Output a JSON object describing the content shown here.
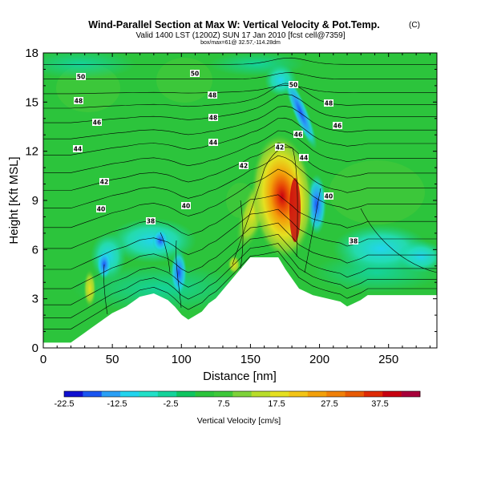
{
  "chart_data": {
    "type": "heatmap",
    "title": "Wind-Parallel Section at Max W: Vertical Velocity & Pot.Temp.",
    "title_mark": "(C)",
    "subtitle": "Valid 1400 LST (1200Z) SUN 17 Jan 2010 [fcst cell@7359]",
    "subtitle2": "box/max=61@ 32.57,-114.28dm",
    "xlabel": "Distance [nm]",
    "ylabel": "Height [Kft MSL]",
    "xlim": [
      0,
      285
    ],
    "ylim": [
      0,
      18
    ],
    "x_ticks": [
      "0",
      "50",
      "100",
      "150",
      "200",
      "250"
    ],
    "y_ticks": [
      "0",
      "3",
      "6",
      "9",
      "12",
      "15",
      "18"
    ],
    "colorbar": {
      "label": "Vertical Velocity [cm/s]",
      "tick_labels": [
        "-22.5",
        "-12.5",
        "-2.5",
        "7.5",
        "17.5",
        "27.5",
        "37.5"
      ],
      "colors": [
        "#1010d0",
        "#1a55f0",
        "#2a9ff5",
        "#22d4ee",
        "#22e0c8",
        "#14d39a",
        "#0fc560",
        "#2cc43c",
        "#3ec83a",
        "#7ed23a",
        "#b8dd2a",
        "#e5e020",
        "#f3c416",
        "#f3a00a",
        "#f08008",
        "#e85a05",
        "#df2a05",
        "#c80010",
        "#a8003a"
      ]
    },
    "terrain_heights_kft": [
      [
        0,
        0.3
      ],
      [
        20,
        0.3
      ],
      [
        25,
        0.6
      ],
      [
        30,
        0.9
      ],
      [
        35,
        1.2
      ],
      [
        40,
        1.5
      ],
      [
        45,
        1.8
      ],
      [
        50,
        2.1
      ],
      [
        60,
        2.5
      ],
      [
        65,
        2.8
      ],
      [
        70,
        3.1
      ],
      [
        80,
        3.3
      ],
      [
        90,
        2.9
      ],
      [
        95,
        2.5
      ],
      [
        100,
        2.0
      ],
      [
        105,
        1.7
      ],
      [
        115,
        2.2
      ],
      [
        120,
        2.7
      ],
      [
        125,
        3.0
      ],
      [
        130,
        3.5
      ],
      [
        140,
        4.5
      ],
      [
        145,
        5.0
      ],
      [
        150,
        5.5
      ],
      [
        170,
        5.5
      ],
      [
        175,
        4.8
      ],
      [
        180,
        4.2
      ],
      [
        185,
        3.6
      ],
      [
        190,
        3.4
      ],
      [
        195,
        3.2
      ],
      [
        205,
        3.0
      ],
      [
        215,
        2.8
      ],
      [
        220,
        2.5
      ],
      [
        230,
        2.9
      ],
      [
        235,
        3.2
      ],
      [
        285,
        3.2
      ]
    ],
    "theta_contour_labels": [
      "50",
      "50",
      "50",
      "48",
      "48",
      "48",
      "48",
      "46",
      "46",
      "46",
      "44",
      "44",
      "44",
      "42",
      "42",
      "42",
      "40",
      "40",
      "40",
      "38",
      "38"
    ]
  }
}
